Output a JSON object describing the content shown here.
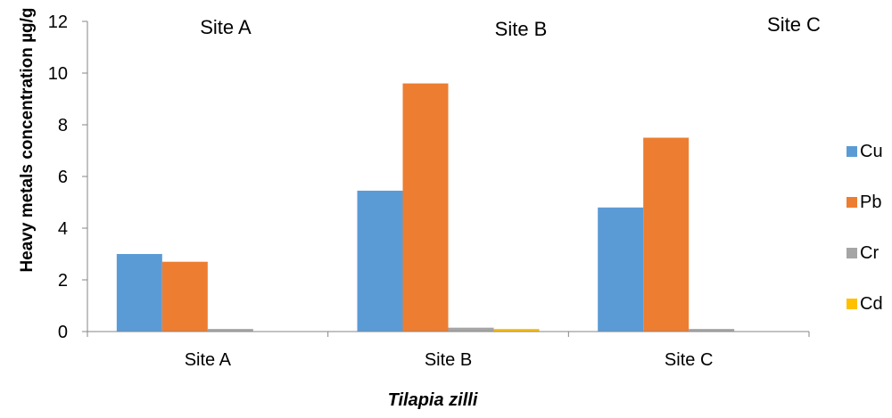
{
  "chart_data": {
    "type": "bar",
    "categories": [
      "Site A",
      "Site B",
      "Site C"
    ],
    "series": [
      {
        "name": "Cu",
        "color": "#5B9BD5",
        "values": [
          3.0,
          5.45,
          4.8
        ]
      },
      {
        "name": "Pb",
        "color": "#ED7D31",
        "values": [
          2.7,
          9.6,
          7.5
        ]
      },
      {
        "name": "Cr",
        "color": "#A5A5A5",
        "values": [
          0.1,
          0.15,
          0.1
        ]
      },
      {
        "name": "Cd",
        "color": "#FFC000",
        "values": [
          0.0,
          0.1,
          0.0
        ]
      }
    ],
    "xlabel": "Tilapia zilli",
    "ylabel": "Heavy metals concentration µg/g",
    "ylim": [
      0,
      12
    ],
    "yticks": [
      "0",
      "2",
      "4",
      "6",
      "8",
      "10",
      "12"
    ],
    "annotations": [
      "Site A",
      "Site B",
      "Site C"
    ],
    "legend_position": "right",
    "grid": false
  }
}
